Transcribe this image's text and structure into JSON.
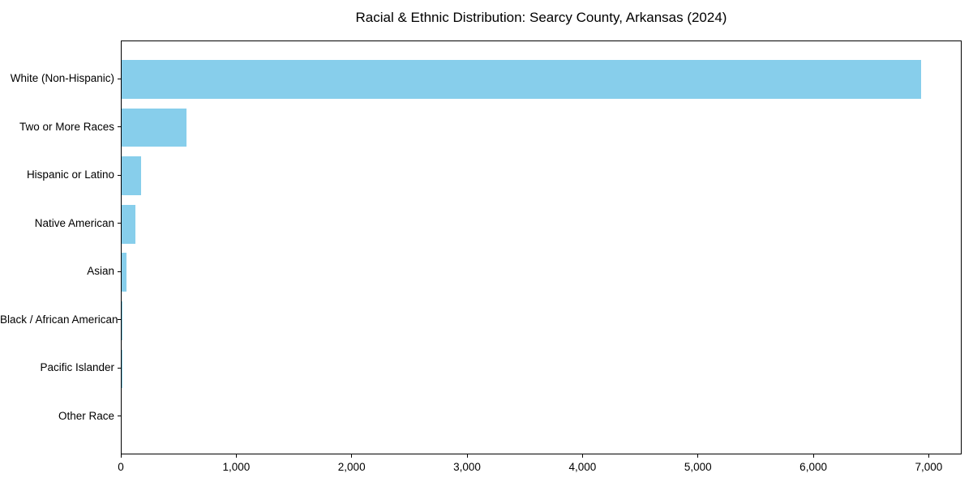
{
  "chart_data": {
    "type": "bar",
    "orientation": "horizontal",
    "title": "Racial & Ethnic Distribution: Searcy County, Arkansas (2024)",
    "xlabel": "",
    "ylabel": "",
    "categories": [
      "White (Non-Hispanic)",
      "Two or More Races",
      "Hispanic or Latino",
      "Native American",
      "Asian",
      "Black / African American",
      "Pacific Islander",
      "Other Race"
    ],
    "values": [
      6937,
      562,
      170,
      119,
      40,
      8,
      2,
      0
    ],
    "xlim": [
      0,
      7285
    ],
    "xtick_values": [
      0,
      1000,
      2000,
      3000,
      4000,
      5000,
      6000,
      7000
    ],
    "xtick_labels": [
      "0",
      "1,000",
      "2,000",
      "3,000",
      "4,000",
      "5,000",
      "6,000",
      "7,000"
    ],
    "bar_color": "#87CEEB",
    "axis_color": "#000000",
    "grid": false,
    "legend": null
  }
}
